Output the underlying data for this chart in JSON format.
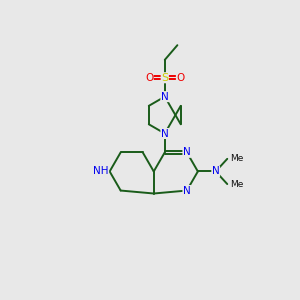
{
  "bg_color": "#e8e8e8",
  "bond_color": "#1a5c1a",
  "n_color": "#0000ee",
  "s_color": "#cccc00",
  "o_color": "#ee0000",
  "lw": 1.4,
  "fs": 7.5,
  "xlim": [
    0,
    10
  ],
  "ylim": [
    0,
    11
  ]
}
